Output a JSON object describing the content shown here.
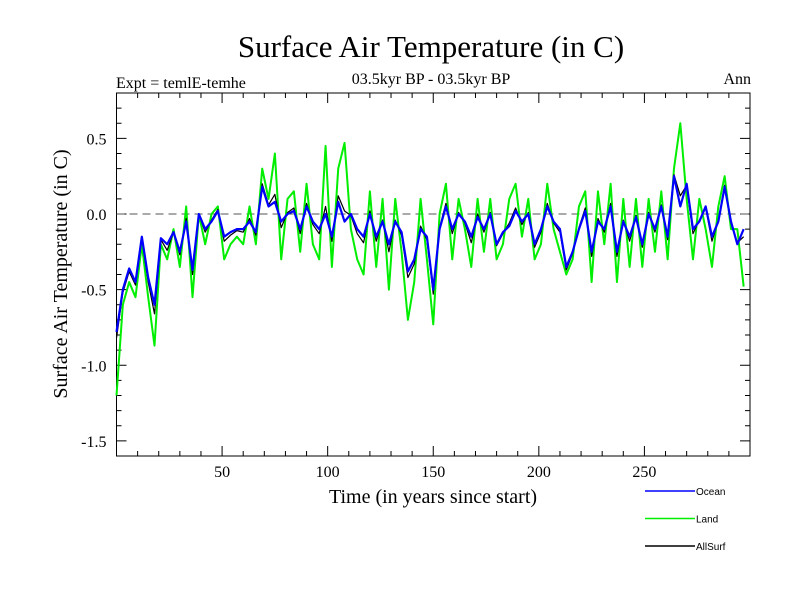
{
  "chart_data": {
    "type": "line",
    "title": "Surface Air Temperature (in C)",
    "subtitle_left": "Expt = temlE-temhe",
    "subtitle_center": "03.5kyr BP - 03.5kyr BP",
    "subtitle_right": "Ann",
    "xlabel": "Time (in years since start)",
    "ylabel": "Surface Air Temperature (in C)",
    "xlim": [
      0,
      300
    ],
    "ylim": [
      -1.6,
      0.8
    ],
    "xticks": [
      50,
      100,
      150,
      200,
      250
    ],
    "xtick_labels": [
      "50",
      "100",
      "150",
      "200",
      "250"
    ],
    "yticks": [
      0.5,
      0.0,
      -0.5,
      -1.0,
      -1.5
    ],
    "ytick_labels": [
      "0.5",
      "0.0",
      "-0.5",
      "-1.0",
      "-1.5"
    ],
    "reference_line": 0.0,
    "legend_position": "bottom-right",
    "x_step": 3,
    "series": [
      {
        "name": "Ocean",
        "color": "#0000ff",
        "values": [
          -0.78,
          -0.5,
          -0.36,
          -0.45,
          -0.15,
          -0.42,
          -0.6,
          -0.16,
          -0.2,
          -0.12,
          -0.25,
          -0.05,
          -0.37,
          0.0,
          -0.1,
          -0.05,
          0.02,
          -0.15,
          -0.12,
          -0.1,
          -0.1,
          -0.05,
          -0.12,
          0.18,
          0.05,
          0.08,
          -0.05,
          0.0,
          0.02,
          -0.1,
          0.05,
          -0.05,
          -0.1,
          0.0,
          -0.15,
          0.08,
          -0.05,
          0.0,
          -0.1,
          -0.15,
          0.0,
          -0.15,
          -0.05,
          -0.2,
          -0.05,
          -0.12,
          -0.38,
          -0.3,
          -0.1,
          -0.15,
          -0.5,
          -0.1,
          0.05,
          -0.1,
          0.0,
          -0.05,
          -0.15,
          -0.02,
          -0.1,
          0.0,
          -0.2,
          -0.12,
          -0.08,
          0.02,
          -0.05,
          0.0,
          -0.2,
          -0.1,
          0.05,
          -0.05,
          -0.1,
          -0.35,
          -0.25,
          -0.1,
          0.02,
          -0.25,
          -0.05,
          -0.1,
          0.05,
          -0.25,
          -0.05,
          -0.15,
          -0.02,
          -0.2,
          0.0,
          -0.1,
          0.05,
          -0.15,
          0.25,
          0.05,
          0.2,
          -0.1,
          -0.05,
          0.05,
          -0.15,
          -0.05,
          0.18,
          -0.05,
          -0.2,
          -0.1
        ]
      },
      {
        "name": "Land",
        "color": "#00ee00",
        "values": [
          -1.2,
          -0.6,
          -0.45,
          -0.55,
          -0.2,
          -0.55,
          -0.87,
          -0.2,
          -0.3,
          -0.1,
          -0.35,
          0.05,
          -0.55,
          0.0,
          -0.2,
          0.0,
          0.05,
          -0.3,
          -0.2,
          -0.15,
          -0.2,
          0.05,
          -0.2,
          0.3,
          0.1,
          0.4,
          -0.3,
          0.1,
          0.15,
          -0.25,
          0.2,
          -0.2,
          -0.3,
          0.45,
          -0.35,
          0.3,
          0.47,
          -0.1,
          -0.3,
          -0.4,
          0.15,
          -0.35,
          0.1,
          -0.5,
          0.1,
          -0.25,
          -0.7,
          -0.45,
          0.1,
          -0.3,
          -0.73,
          0.0,
          0.2,
          -0.3,
          0.1,
          -0.1,
          -0.35,
          0.1,
          -0.25,
          0.1,
          -0.3,
          -0.2,
          0.1,
          0.2,
          -0.15,
          0.1,
          -0.3,
          -0.2,
          0.2,
          -0.1,
          -0.25,
          -0.4,
          -0.3,
          0.05,
          0.15,
          -0.45,
          0.15,
          -0.2,
          0.2,
          -0.45,
          0.1,
          -0.35,
          0.1,
          -0.35,
          0.1,
          -0.25,
          0.15,
          -0.3,
          0.3,
          0.6,
          0.1,
          -0.3,
          0.1,
          -0.1,
          -0.35,
          0.05,
          0.25,
          -0.1,
          -0.1,
          -0.48
        ]
      },
      {
        "name": "AllSurf",
        "color": "#000000",
        "values": [
          -0.82,
          -0.52,
          -0.38,
          -0.47,
          -0.16,
          -0.45,
          -0.66,
          -0.17,
          -0.24,
          -0.12,
          -0.27,
          -0.03,
          -0.4,
          0.0,
          -0.12,
          -0.04,
          0.03,
          -0.18,
          -0.14,
          -0.11,
          -0.12,
          -0.03,
          -0.14,
          0.2,
          0.06,
          0.13,
          -0.09,
          0.01,
          0.04,
          -0.13,
          0.07,
          -0.07,
          -0.13,
          0.05,
          -0.18,
          0.12,
          0.02,
          -0.01,
          -0.13,
          -0.19,
          0.02,
          -0.18,
          -0.04,
          -0.25,
          -0.04,
          -0.14,
          -0.42,
          -0.33,
          -0.08,
          -0.17,
          -0.53,
          -0.09,
          0.07,
          -0.13,
          0.01,
          -0.06,
          -0.19,
          0.0,
          -0.12,
          0.01,
          -0.21,
          -0.13,
          -0.06,
          0.04,
          -0.07,
          0.01,
          -0.22,
          -0.12,
          0.07,
          -0.06,
          -0.12,
          -0.37,
          -0.26,
          -0.09,
          0.04,
          -0.28,
          -0.03,
          -0.12,
          0.07,
          -0.28,
          -0.04,
          -0.18,
          -0.01,
          -0.22,
          0.01,
          -0.12,
          0.06,
          -0.17,
          0.26,
          0.12,
          0.19,
          -0.13,
          -0.04,
          0.04,
          -0.18,
          -0.04,
          0.19,
          -0.06,
          -0.19,
          -0.15
        ]
      }
    ]
  }
}
